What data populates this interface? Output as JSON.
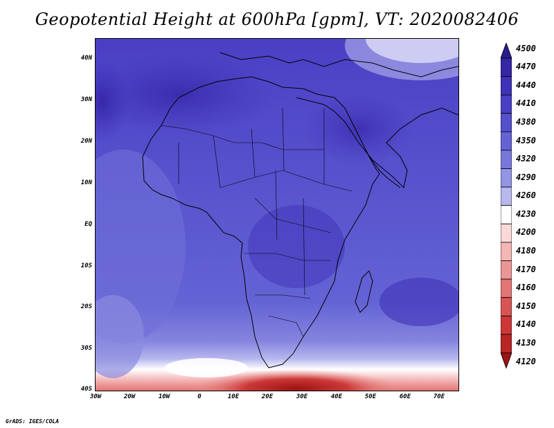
{
  "title": "Geopotential Height at 600hPa [gpm], VT: 2020082406",
  "lat_labels": [
    "40N",
    "30N",
    "20N",
    "10N",
    "EQ",
    "10S",
    "20S",
    "30S",
    "40S"
  ],
  "lon_labels": [
    "30W",
    "20W",
    "10W",
    "0",
    "10E",
    "20E",
    "30E",
    "40E",
    "50E",
    "60E",
    "70E"
  ],
  "colorbar": {
    "levels": [
      "4500",
      "4470",
      "4440",
      "4410",
      "4380",
      "4350",
      "4320",
      "4290",
      "4260",
      "4230",
      "4200",
      "4180",
      "4170",
      "4160",
      "4150",
      "4140",
      "4130",
      "4120"
    ],
    "colors": [
      "#2b1d8f",
      "#3626a6",
      "#4032b8",
      "#4a3fc4",
      "#5550cc",
      "#6463d4",
      "#7878db",
      "#9494e4",
      "#b8b8ef",
      "#ffffff",
      "#fbd9d9",
      "#f4b5b5",
      "#ec9595",
      "#e37575",
      "#d95555",
      "#cc3838",
      "#b82626",
      "#9e1414"
    ]
  },
  "credit": "GrADS: IGES/COLA"
}
